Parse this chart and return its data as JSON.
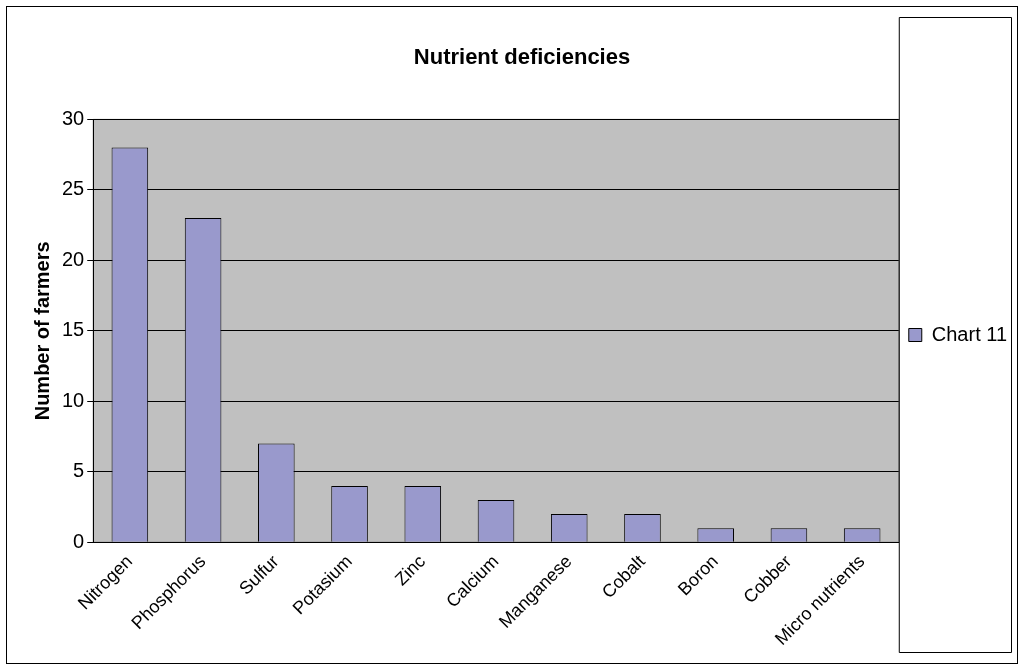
{
  "chart_data": {
    "type": "bar",
    "title": "Nutrient deficiencies",
    "ylabel": "Number of farmers",
    "categories": [
      "Nitrogen",
      "Phosphorus",
      "Sulfur",
      "Potasium",
      "Zinc",
      "Calcium",
      "Manganese",
      "Cobalt",
      "Boron",
      "Cobber",
      "Micro nutrients"
    ],
    "series": [
      {
        "name": "Chart 11",
        "color": "#9999cc",
        "values": [
          28,
          23,
          7,
          4,
          4,
          3,
          2,
          2,
          1,
          1,
          1
        ]
      }
    ],
    "ylim": [
      0,
      30
    ],
    "yticks": [
      0,
      5,
      10,
      15,
      20,
      25,
      30
    ],
    "grid": "y",
    "legend": "right"
  }
}
